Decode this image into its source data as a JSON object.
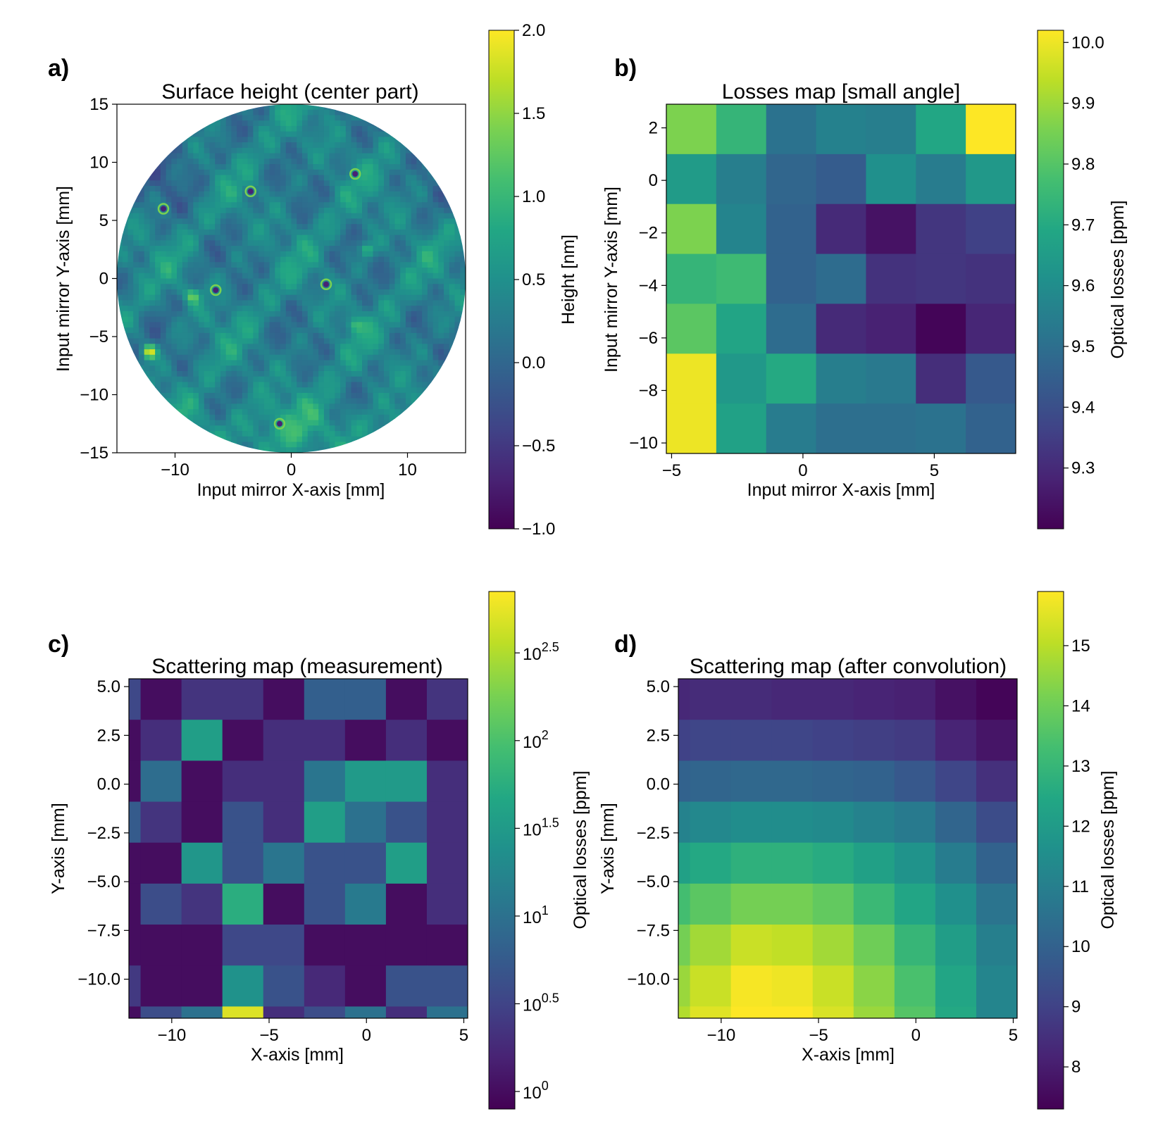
{
  "chart_data": [
    {
      "type": "heatmap",
      "panel_label": "a)",
      "title": "Surface height (center part)",
      "xlabel": "Input mirror X-axis [mm]",
      "ylabel": "Input mirror Y-axis [mm]",
      "xlim": [
        -15,
        15
      ],
      "ylim": [
        -15,
        15
      ],
      "xticks": [
        -10,
        0,
        10
      ],
      "xtick_labels": [
        "−10",
        "0",
        "10"
      ],
      "yticks": [
        -15,
        -10,
        -5,
        0,
        5,
        10,
        15
      ],
      "ytick_labels": [
        "−15",
        "−10",
        "−5",
        "0",
        "5",
        "10",
        "15"
      ],
      "aperture_radius_mm": 15,
      "colorbar": {
        "label": "Height [nm]",
        "range": [
          -1.0,
          2.0
        ],
        "ticks": [
          2.0,
          1.5,
          1.0,
          0.5,
          0.0,
          -0.5,
          -1.0
        ],
        "tick_labels": [
          "2.0",
          "1.5",
          "1.0",
          "0.5",
          "0.0",
          "−0.5",
          "−1.0"
        ]
      },
      "features": [
        {
          "x": -12.2,
          "y": -6.3,
          "value": 2.0
        },
        {
          "x": -8.5,
          "y": -1.5,
          "value": 1.3
        },
        {
          "x": 5.5,
          "y": -4.0,
          "value": 1.0
        },
        {
          "x": 6.5,
          "y": 2.5,
          "value": 1.2
        }
      ],
      "pits": [
        {
          "x": 5.5,
          "y": 9.0
        },
        {
          "x": -3.5,
          "y": 7.5
        },
        {
          "x": -1.0,
          "y": -12.5
        },
        {
          "x": -11.0,
          "y": 6.0
        },
        {
          "x": 3.0,
          "y": -0.5
        },
        {
          "x": -6.5,
          "y": -1.0
        }
      ]
    },
    {
      "type": "heatmap",
      "panel_label": "b)",
      "title": "Losses map [small angle]",
      "xlabel": "Input mirror X-axis [mm]",
      "ylabel": "Input mirror Y-axis [mm]",
      "x_edges": [
        -5.2,
        -3.3,
        -1.4,
        0.5,
        2.4,
        4.3,
        6.2,
        8.1
      ],
      "y_edges": [
        -10.4,
        -8.5,
        -6.6,
        -4.7,
        -2.8,
        -0.9,
        1.0,
        2.9
      ],
      "xticks": [
        -5,
        0,
        5
      ],
      "xtick_labels": [
        "−5",
        "0",
        "5"
      ],
      "yticks": [
        2,
        0,
        -2,
        -4,
        -6,
        -8,
        -10
      ],
      "ytick_labels": [
        "2",
        "0",
        "−2",
        "−4",
        "−6",
        "−8",
        "−10"
      ],
      "z_rows_top_to_bottom": [
        [
          9.86,
          9.74,
          9.51,
          9.56,
          9.55,
          9.69,
          10.02
        ],
        [
          9.65,
          9.55,
          9.47,
          9.44,
          9.61,
          9.54,
          9.64
        ],
        [
          9.86,
          9.57,
          9.46,
          9.3,
          9.24,
          9.33,
          9.36
        ],
        [
          9.74,
          9.76,
          9.46,
          9.49,
          9.32,
          9.33,
          9.32
        ],
        [
          9.81,
          9.68,
          9.49,
          9.3,
          9.28,
          9.21,
          9.29
        ],
        [
          10.0,
          9.64,
          9.7,
          9.55,
          9.53,
          9.31,
          9.43
        ],
        [
          10.0,
          9.67,
          9.54,
          9.5,
          9.5,
          9.51,
          9.46
        ]
      ],
      "colorbar": {
        "label": "Optical losses [ppm]",
        "range": [
          9.2,
          10.02
        ],
        "ticks": [
          10.0,
          9.9,
          9.8,
          9.7,
          9.6,
          9.5,
          9.4,
          9.3
        ],
        "tick_labels": [
          "10.0",
          "9.9",
          "9.8",
          "9.7",
          "9.6",
          "9.5",
          "9.4",
          "9.3"
        ]
      }
    },
    {
      "type": "heatmap",
      "panel_label": "c)",
      "title": "Scattering map (measurement)",
      "xlabel": "X-axis [mm]",
      "ylabel": "Y-axis [mm]",
      "x_edges": [
        -12.2,
        -11.6,
        -9.5,
        -7.4,
        -5.3,
        -3.2,
        -1.1,
        1.0,
        3.1,
        5.2
      ],
      "y_edges": [
        -12.0,
        -11.4,
        -9.3,
        -7.2,
        -5.1,
        -3.0,
        -0.9,
        1.2,
        3.3,
        5.4
      ],
      "xticks": [
        -10,
        -5,
        0,
        5
      ],
      "xtick_labels": [
        "−10",
        "−5",
        "0",
        "5"
      ],
      "yticks": [
        5.0,
        2.5,
        0.0,
        -2.5,
        -5.0,
        -7.5,
        -10.0
      ],
      "ytick_labels": [
        "5.0",
        "2.5",
        "0.0",
        "−2.5",
        "−5.0",
        "−7.5",
        "−10.0"
      ],
      "log10_rows_top_to_bottom": [
        [
          0.55,
          0.0,
          0.35,
          0.35,
          0.0,
          0.8,
          0.8,
          0.0,
          0.35
        ],
        [
          0.0,
          0.3,
          1.55,
          0.0,
          0.3,
          0.3,
          0.0,
          0.3,
          0.0
        ],
        [
          0.0,
          0.95,
          0.0,
          0.3,
          0.3,
          1.05,
          1.5,
          1.5,
          0.3
        ],
        [
          0.75,
          0.35,
          0.0,
          0.65,
          0.3,
          1.55,
          1.0,
          0.65,
          0.3
        ],
        [
          0.0,
          0.0,
          1.45,
          0.65,
          1.05,
          0.65,
          0.65,
          1.55,
          0.3
        ],
        [
          0.0,
          0.6,
          0.35,
          1.75,
          0.0,
          0.65,
          1.1,
          0.0,
          0.3
        ],
        [
          0.0,
          0.0,
          0.0,
          0.55,
          0.55,
          0.0,
          0.0,
          0.0,
          0.0
        ],
        [
          0.4,
          0.0,
          0.0,
          1.4,
          0.65,
          0.25,
          0.0,
          0.65,
          0.65
        ],
        [
          0.0,
          0.6,
          1.0,
          2.7,
          0.3,
          0.6,
          1.0,
          0.3,
          1.0
        ]
      ],
      "colorbar": {
        "label": "Optical losses [ppm]",
        "log10_range": [
          -0.1,
          2.85
        ],
        "tick_exponents": [
          "2.5",
          "2",
          "1.5",
          "1",
          "0.5",
          "0"
        ],
        "tick_base": "10"
      }
    },
    {
      "type": "heatmap",
      "panel_label": "d)",
      "title": "Scattering map (after convolution)",
      "xlabel": "X-axis [mm]",
      "ylabel": "Y-axis [mm]",
      "x_edges": [
        -12.2,
        -11.6,
        -9.5,
        -7.4,
        -5.3,
        -3.2,
        -1.1,
        1.0,
        3.1,
        5.2
      ],
      "y_edges": [
        -12.0,
        -11.4,
        -9.3,
        -7.2,
        -5.1,
        -3.0,
        -0.9,
        1.2,
        3.3,
        5.4
      ],
      "xticks": [
        -10,
        -5,
        0,
        5
      ],
      "xtick_labels": [
        "−10",
        "−5",
        "0",
        "5"
      ],
      "yticks": [
        5.0,
        2.5,
        0.0,
        -2.5,
        -5.0,
        -7.5,
        -10.0
      ],
      "ytick_labels": [
        "5.0",
        "2.5",
        "0.0",
        "−2.5",
        "−5.0",
        "−7.5",
        "−10.0"
      ],
      "z_rows_top_to_bottom": [
        [
          8.3,
          8.4,
          8.4,
          8.3,
          8.3,
          8.2,
          8.1,
          7.7,
          7.4
        ],
        [
          9.0,
          9.1,
          9.1,
          9.1,
          9.0,
          8.9,
          8.8,
          8.2,
          7.8
        ],
        [
          10.0,
          10.1,
          10.2,
          10.2,
          10.1,
          10.0,
          9.7,
          9.1,
          8.5
        ],
        [
          11.1,
          11.3,
          11.5,
          11.5,
          11.4,
          11.1,
          10.8,
          10.1,
          9.3
        ],
        [
          12.2,
          12.5,
          12.8,
          12.8,
          12.6,
          12.2,
          11.7,
          10.9,
          10.0
        ],
        [
          13.3,
          13.7,
          14.1,
          14.1,
          13.8,
          13.1,
          12.4,
          11.6,
          10.6
        ],
        [
          14.1,
          14.7,
          15.2,
          15.1,
          14.7,
          14.0,
          13.0,
          12.1,
          11.0
        ],
        [
          14.6,
          15.2,
          15.8,
          15.7,
          15.2,
          14.4,
          13.4,
          12.4,
          11.2
        ],
        [
          14.9,
          15.5,
          15.9,
          15.9,
          15.4,
          14.6,
          13.6,
          12.5,
          11.2
        ]
      ],
      "colorbar": {
        "label": "Optical losses [ppm]",
        "range": [
          7.3,
          15.9
        ],
        "ticks": [
          15,
          14,
          13,
          12,
          11,
          10,
          9,
          8
        ],
        "tick_labels": [
          "15",
          "14",
          "13",
          "12",
          "11",
          "10",
          "9",
          "8"
        ]
      }
    }
  ]
}
